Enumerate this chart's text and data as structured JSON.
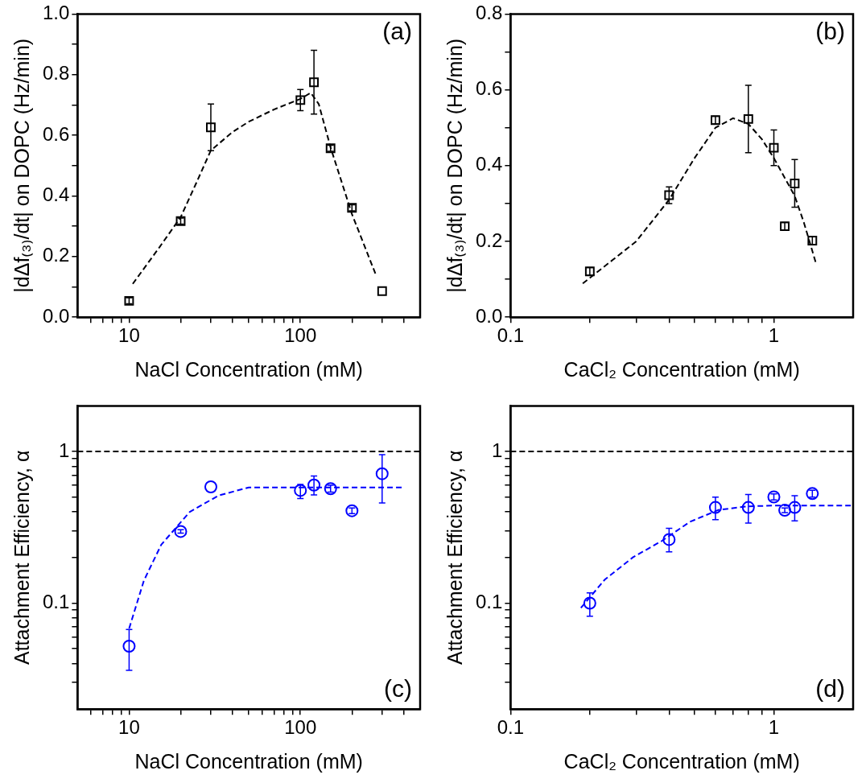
{
  "chart_data": [
    {
      "type": "scatter",
      "xlabel": "NaCl Concentration (mM)",
      "ylabel": "|dΔf₍₃₎/dt| on DOPC (Hz/min)",
      "annotations": [
        "(a)"
      ],
      "log": "x",
      "xlim": [
        5,
        500
      ],
      "xticks": [
        {
          "value": 6,
          "label": null
        },
        {
          "value": 7,
          "label": null
        },
        {
          "value": 8,
          "label": null
        },
        {
          "value": 9,
          "label": null
        },
        10,
        {
          "value": 20,
          "label": null
        },
        {
          "value": 30,
          "label": null
        },
        {
          "value": 40,
          "label": null
        },
        {
          "value": 50,
          "label": null
        },
        {
          "value": 60,
          "label": null
        },
        {
          "value": 70,
          "label": null
        },
        {
          "value": 80,
          "label": null
        },
        {
          "value": 90,
          "label": null
        },
        100,
        {
          "value": 200,
          "label": null
        },
        {
          "value": 300,
          "label": null
        },
        {
          "value": 400,
          "label": null
        }
      ],
      "ylim": [
        0,
        1
      ],
      "yticks": [
        {
          "value": 0,
          "label": "0.0"
        },
        {
          "value": 0.1,
          "label": null
        },
        0.2,
        {
          "value": 0.3,
          "label": null
        },
        0.4,
        {
          "value": 0.5,
          "label": null
        },
        0.6,
        {
          "value": 0.7,
          "label": null
        },
        0.8,
        {
          "value": 0.9,
          "label": null
        },
        {
          "value": 1,
          "label": "1.0"
        }
      ],
      "series": [
        {
          "marker": "square",
          "color": "#000000",
          "x": [
            10,
            20,
            30,
            100,
            120,
            150,
            200,
            300
          ],
          "values": [
            0.054,
            0.317,
            0.626,
            0.716,
            0.775,
            0.557,
            0.361,
            0.086
          ],
          "errors": [
            0.01,
            0.01,
            0.077,
            0.035,
            0.105,
            0.01,
            0.01,
            null
          ]
        },
        {
          "type": "line",
          "marker": "none",
          "line_style": "dashed",
          "color": "#000000",
          "x": [
            10.5,
            15,
            20,
            25,
            30,
            40,
            50,
            70,
            100,
            115,
            128,
            150,
            200,
            274
          ],
          "values": [
            0.11,
            0.23,
            0.33,
            0.45,
            0.55,
            0.61,
            0.645,
            0.685,
            0.72,
            0.74,
            0.703,
            0.56,
            0.34,
            0.144
          ]
        }
      ]
    },
    {
      "type": "scatter",
      "xlabel": "CaCl₂ Concentration (mM)",
      "ylabel": "|dΔf₍₃₎/dt| on DOPC (Hz/min)",
      "annotations": [
        "(b)"
      ],
      "log": "x",
      "xlim": [
        0.1,
        2
      ],
      "xticks": [
        0.1,
        {
          "value": 0.2,
          "label": null
        },
        {
          "value": 0.3,
          "label": null
        },
        {
          "value": 0.4,
          "label": null
        },
        {
          "value": 0.5,
          "label": null
        },
        {
          "value": 0.6,
          "label": null
        },
        {
          "value": 0.7,
          "label": null
        },
        {
          "value": 0.8,
          "label": null
        },
        {
          "value": 0.9,
          "label": null
        },
        1
      ],
      "ylim": [
        0,
        0.8
      ],
      "yticks": [
        {
          "value": 0,
          "label": "0.0"
        },
        {
          "value": 0.1,
          "label": null
        },
        0.2,
        {
          "value": 0.3,
          "label": null
        },
        0.4,
        {
          "value": 0.5,
          "label": null
        },
        0.6,
        {
          "value": 0.7,
          "label": null
        },
        0.8
      ],
      "series": [
        {
          "marker": "square",
          "color": "#000000",
          "x": [
            0.2,
            0.4,
            0.6,
            0.8,
            1.0,
            1.1,
            1.2,
            1.4
          ],
          "values": [
            0.121,
            0.322,
            0.52,
            0.523,
            0.447,
            0.24,
            0.353,
            0.202
          ],
          "errors": [
            0.01,
            0.022,
            0.01,
            0.089,
            0.047,
            0.01,
            0.063,
            0.01
          ]
        },
        {
          "type": "line",
          "marker": "none",
          "line_style": "dashed",
          "color": "#000000",
          "x": [
            0.188,
            0.3,
            0.4,
            0.5,
            0.6,
            0.7,
            0.8,
            0.9,
            1.0,
            1.2,
            1.3,
            1.44
          ],
          "values": [
            0.089,
            0.2,
            0.31,
            0.42,
            0.5,
            0.525,
            0.51,
            0.47,
            0.42,
            0.32,
            0.25,
            0.146
          ]
        }
      ]
    },
    {
      "type": "scatter",
      "xlabel": "NaCl Concentration (mM)",
      "ylabel": "Attachment Efficiency, α",
      "annotations": [
        "(c)"
      ],
      "log": "xy",
      "xlim": [
        5,
        500
      ],
      "xticks": [
        {
          "value": 6,
          "label": null
        },
        {
          "value": 7,
          "label": null
        },
        {
          "value": 8,
          "label": null
        },
        {
          "value": 9,
          "label": null
        },
        10,
        {
          "value": 20,
          "label": null
        },
        {
          "value": 30,
          "label": null
        },
        {
          "value": 40,
          "label": null
        },
        {
          "value": 50,
          "label": null
        },
        {
          "value": 60,
          "label": null
        },
        {
          "value": 70,
          "label": null
        },
        {
          "value": 80,
          "label": null
        },
        {
          "value": 90,
          "label": null
        },
        100,
        {
          "value": 200,
          "label": null
        },
        {
          "value": 300,
          "label": null
        },
        {
          "value": 400,
          "label": null
        }
      ],
      "ylim": [
        0.02,
        2
      ],
      "yticks": [
        {
          "value": 0.03,
          "label": null
        },
        {
          "value": 0.04,
          "label": null
        },
        {
          "value": 0.05,
          "label": null
        },
        {
          "value": 0.06,
          "label": null
        },
        {
          "value": 0.07,
          "label": null
        },
        {
          "value": 0.08,
          "label": null
        },
        {
          "value": 0.09,
          "label": null
        },
        0.1,
        {
          "value": 0.2,
          "label": null
        },
        {
          "value": 0.3,
          "label": null
        },
        {
          "value": 0.4,
          "label": null
        },
        {
          "value": 0.5,
          "label": null
        },
        {
          "value": 0.6,
          "label": null
        },
        {
          "value": 0.7,
          "label": null
        },
        {
          "value": 0.8,
          "label": null
        },
        {
          "value": 0.9,
          "label": null
        },
        1
      ],
      "ref_lines": [
        {
          "axis": "y",
          "value": 1,
          "color": "#000000",
          "line_style": "dashed"
        }
      ],
      "series": [
        {
          "marker": "circle",
          "color": "#0000ff",
          "x": [
            10,
            20,
            30,
            100,
            120,
            150,
            200,
            300
          ],
          "values": [
            0.052,
            0.297,
            0.585,
            0.554,
            0.601,
            0.569,
            0.407,
            0.714
          ],
          "errors": [
            [
              0.036,
              0.067
            ],
            [
              0.29,
              0.305
            ],
            null,
            [
              0.49,
              0.607
            ],
            [
              0.518,
              0.689
            ],
            [
              0.54,
              0.6
            ],
            [
              0.39,
              0.425
            ],
            [
              0.458,
              0.955
            ]
          ]
        },
        {
          "type": "line",
          "marker": "none",
          "line_style": "dashed",
          "color": "#0000ff",
          "x": [
            10,
            12.2,
            15.4,
            22.6,
            33.3,
            50,
            100,
            200,
            390
          ],
          "values": [
            0.068,
            0.141,
            0.243,
            0.4,
            0.513,
            0.58,
            0.58,
            0.58,
            0.58
          ]
        }
      ]
    },
    {
      "type": "scatter",
      "xlabel": "CaCl₂ Concentration (mM)",
      "ylabel": "Attachment Efficiency, α",
      "annotations": [
        "(d)"
      ],
      "log": "xy",
      "xlim": [
        0.1,
        2
      ],
      "xticks": [
        0.1,
        {
          "value": 0.2,
          "label": null
        },
        {
          "value": 0.3,
          "label": null
        },
        {
          "value": 0.4,
          "label": null
        },
        {
          "value": 0.5,
          "label": null
        },
        {
          "value": 0.6,
          "label": null
        },
        {
          "value": 0.7,
          "label": null
        },
        {
          "value": 0.8,
          "label": null
        },
        {
          "value": 0.9,
          "label": null
        },
        1
      ],
      "ylim": [
        0.02,
        2
      ],
      "yticks": [
        {
          "value": 0.03,
          "label": null
        },
        {
          "value": 0.04,
          "label": null
        },
        {
          "value": 0.05,
          "label": null
        },
        {
          "value": 0.06,
          "label": null
        },
        {
          "value": 0.07,
          "label": null
        },
        {
          "value": 0.08,
          "label": null
        },
        {
          "value": 0.09,
          "label": null
        },
        0.1,
        {
          "value": 0.2,
          "label": null
        },
        {
          "value": 0.3,
          "label": null
        },
        {
          "value": 0.4,
          "label": null
        },
        {
          "value": 0.5,
          "label": null
        },
        {
          "value": 0.6,
          "label": null
        },
        {
          "value": 0.7,
          "label": null
        },
        {
          "value": 0.8,
          "label": null
        },
        {
          "value": 0.9,
          "label": null
        },
        1
      ],
      "ref_lines": [
        {
          "axis": "y",
          "value": 1,
          "color": "#000000",
          "line_style": "dashed"
        }
      ],
      "series": [
        {
          "marker": "circle",
          "color": "#0000ff",
          "x": [
            0.2,
            0.4,
            0.6,
            0.8,
            1.0,
            1.1,
            1.2,
            1.4
          ],
          "values": [
            0.1,
            0.263,
            0.428,
            0.428,
            0.502,
            0.41,
            0.428,
            0.528
          ],
          "errors": [
            [
              0.082,
              0.117
            ],
            [
              0.218,
              0.312
            ],
            [
              0.355,
              0.5
            ],
            [
              0.337,
              0.521
            ],
            [
              0.48,
              0.525
            ],
            [
              0.395,
              0.425
            ],
            [
              0.349,
              0.512
            ],
            [
              0.5,
              0.555
            ]
          ]
        },
        {
          "type": "line",
          "marker": "none",
          "line_style": "dashed",
          "color": "#0000ff",
          "x": [
            0.185,
            0.228,
            0.292,
            0.375,
            0.48,
            0.616,
            0.79,
            1.0,
            1.5,
            1.96
          ],
          "values": [
            0.093,
            0.143,
            0.201,
            0.257,
            0.344,
            0.412,
            0.435,
            0.44,
            0.44,
            0.44
          ]
        }
      ]
    }
  ]
}
